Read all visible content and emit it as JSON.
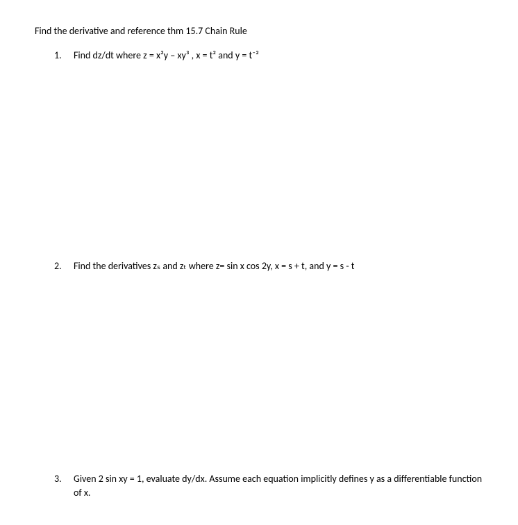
{
  "title": "Find the derivative and reference thm 15.7 Chain Rule",
  "problems": [
    {
      "number": "1.",
      "text": "Find dz/dt where z = x²y – xy³ , x = t² and y = t⁻²"
    },
    {
      "number": "2.",
      "text": "Find the derivatives zₛ and zₜ where z= sin x cos 2y, x = s + t, and y = s - t"
    },
    {
      "number": "3.",
      "text": "Given 2 sin xy = 1, evaluate dy/dx.  Assume each equation implicitly defines y as a differentiable function of x."
    }
  ]
}
